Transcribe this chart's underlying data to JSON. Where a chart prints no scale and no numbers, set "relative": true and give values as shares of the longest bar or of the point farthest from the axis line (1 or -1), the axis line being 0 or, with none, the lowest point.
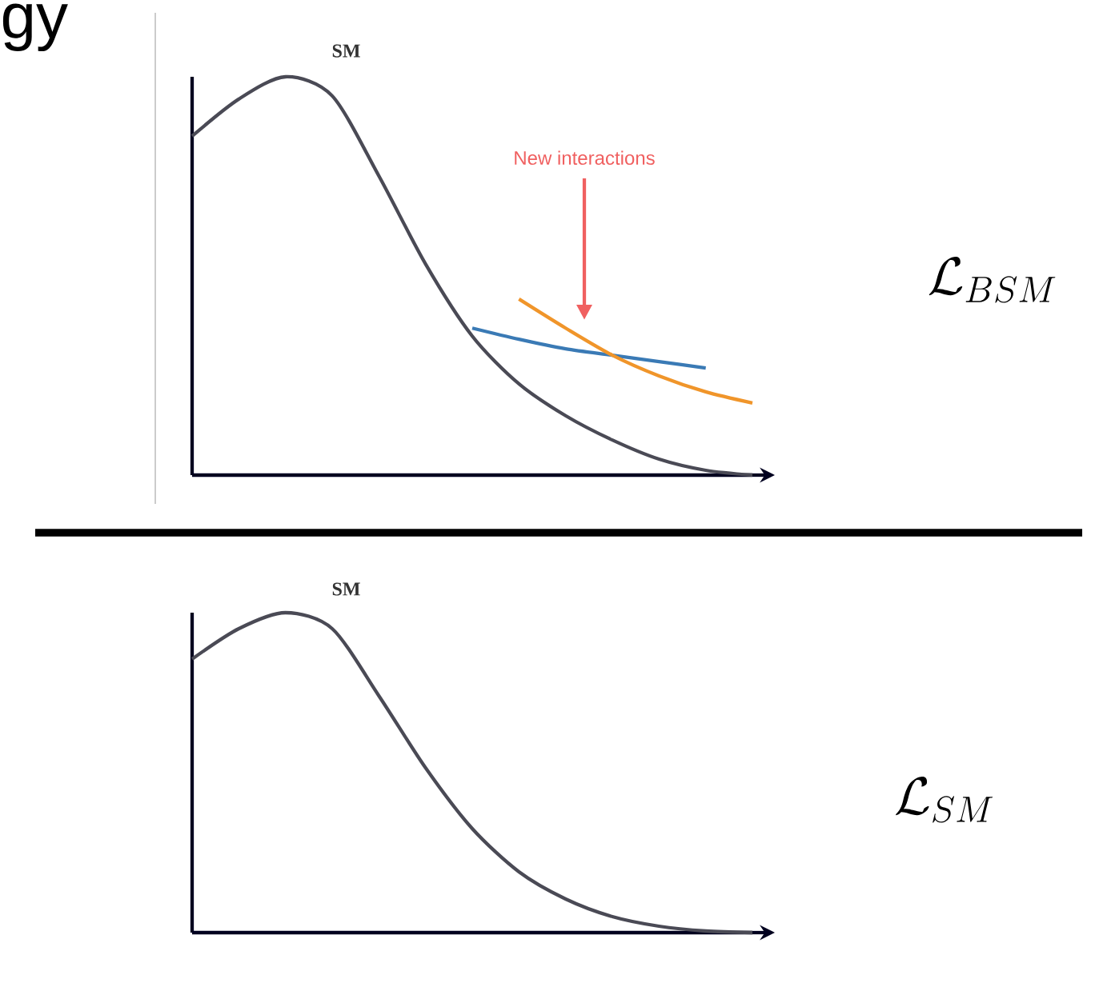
{
  "chart_data": [
    {
      "type": "line",
      "relative": true,
      "title": "gy",
      "categories": [
        null,
        null,
        null,
        null,
        null,
        null,
        null,
        null,
        null,
        null,
        null,
        null,
        null
      ],
      "series": [
        {
          "name": "SM",
          "color": "#4a4a55",
          "values": [
            0.851,
            0.944,
            1.0,
            0.952,
            0.751,
            0.53,
            0.349,
            0.229,
            0.149,
            0.088,
            0.04,
            0.012,
            0
          ]
        },
        {
          "color": "#3a7ab5",
          "values": [
            null,
            null,
            null,
            null,
            null,
            null,
            0.369,
            0.341,
            0.317,
            0.301,
            0.285,
            0.269,
            null
          ]
        },
        {
          "color": "#f0952a",
          "values": [
            null,
            null,
            null,
            null,
            null,
            null,
            null,
            0.442,
            0.369,
            0.301,
            0.249,
            0.209,
            0.181
          ]
        }
      ],
      "annotations": [
        "New interactions",
        "\\mathcal{L}_{BSM}"
      ]
    },
    {
      "type": "line",
      "relative": true,
      "categories": [
        null,
        null,
        null,
        null,
        null,
        null,
        null,
        null,
        null,
        null,
        null,
        null,
        null
      ],
      "series": [
        {
          "name": "SM",
          "color": "#4a4a55",
          "values": [
            0.855,
            0.95,
            1.0,
            0.95,
            0.74,
            0.515,
            0.325,
            0.19,
            0.105,
            0.05,
            0.02,
            0.005,
            0
          ]
        }
      ],
      "annotations": [
        "\\mathcal{L}_{SM}"
      ]
    }
  ]
}
